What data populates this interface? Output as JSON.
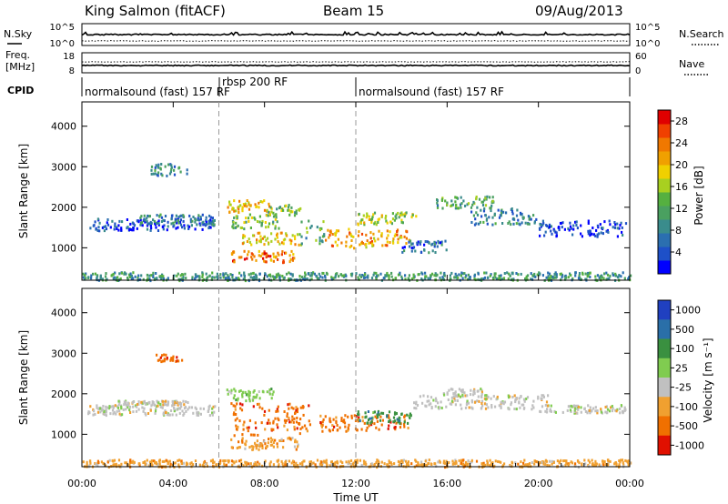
{
  "header": {
    "station": "King Salmon (fitACF)",
    "beam": "Beam 15",
    "date": "09/Aug/2013"
  },
  "noise_panel": {
    "left_label": "N.Sky",
    "left_ticks": [
      "10^5",
      "10^0"
    ],
    "right_label": "N.Search",
    "right_ticks": [
      "10^5",
      "10^0"
    ]
  },
  "freq_panel": {
    "left_label_1": "Freq.",
    "left_label_2": "[MHz]",
    "left_ticks": [
      "18",
      "8"
    ],
    "right_label": "Nave",
    "right_ticks": [
      "60",
      "0"
    ]
  },
  "cpid_panel": {
    "label": "CPID",
    "modes": [
      {
        "name": "normalsound (fast) 157 RF",
        "start_hour": 0
      },
      {
        "name": "rbsp 200 RF",
        "start_hour": 6
      },
      {
        "name": "normalsound (fast) 157 RF",
        "start_hour": 12
      }
    ]
  },
  "chart_data": [
    {
      "type": "heatmap",
      "name": "power",
      "ylabel": "Slant Range [km]",
      "yticks": [
        1000,
        2000,
        3000,
        4000
      ],
      "ylim": [
        200,
        4600
      ],
      "xlim": [
        0,
        24
      ],
      "colorbar": {
        "label": "Power [dB]",
        "tick_labels": [
          "4",
          "8",
          "12",
          "16",
          "20",
          "24",
          "28"
        ],
        "tick_values": [
          4,
          8,
          12,
          16,
          20,
          24,
          28
        ],
        "range": [
          0,
          30
        ],
        "colors": [
          "#0000ff",
          "#1e50c8",
          "#2b6fb0",
          "#3a8c8c",
          "#4aa060",
          "#55b040",
          "#a8d020",
          "#f0d000",
          "#f0a000",
          "#f07800",
          "#f04000",
          "#e00000"
        ]
      },
      "regions": [
        {
          "t": [
            0.2,
            5.8
          ],
          "r": [
            1450,
            1750
          ],
          "level": 4
        },
        {
          "t": [
            2.5,
            5.8
          ],
          "r": [
            1600,
            1850
          ],
          "level": 8
        },
        {
          "t": [
            3.0,
            4.6
          ],
          "r": [
            2800,
            3100
          ],
          "level": 8
        },
        {
          "t": [
            6.3,
            8.3
          ],
          "r": [
            1900,
            2200
          ],
          "level": 20
        },
        {
          "t": [
            6.5,
            8.6
          ],
          "r": [
            1500,
            1850
          ],
          "level": 14
        },
        {
          "t": [
            7.0,
            9.5
          ],
          "r": [
            1100,
            1400
          ],
          "level": 20
        },
        {
          "t": [
            6.5,
            9.3
          ],
          "r": [
            650,
            950
          ],
          "level": 24
        },
        {
          "t": [
            8.0,
            9.6
          ],
          "r": [
            1800,
            2100
          ],
          "level": 14
        },
        {
          "t": [
            9.5,
            10.6
          ],
          "r": [
            1100,
            1700
          ],
          "level": 12
        },
        {
          "t": [
            10.6,
            14.3
          ],
          "r": [
            1000,
            1500
          ],
          "level": 22
        },
        {
          "t": [
            12.0,
            14.6
          ],
          "r": [
            1600,
            1900
          ],
          "level": 16
        },
        {
          "t": [
            14.0,
            16.0
          ],
          "r": [
            900,
            1200
          ],
          "level": 6
        },
        {
          "t": [
            15.5,
            18.0
          ],
          "r": [
            2000,
            2300
          ],
          "level": 12
        },
        {
          "t": [
            17.0,
            20.0
          ],
          "r": [
            1600,
            2000
          ],
          "level": 8
        },
        {
          "t": [
            20.0,
            23.8
          ],
          "r": [
            1300,
            1700
          ],
          "level": 4
        },
        {
          "t": [
            0.0,
            24.0
          ],
          "r": [
            220,
            420
          ],
          "level": 10
        }
      ]
    },
    {
      "type": "heatmap",
      "name": "velocity",
      "ylabel": "Slant Range [km]",
      "yticks": [
        1000,
        2000,
        3000,
        4000
      ],
      "ylim": [
        200,
        4600
      ],
      "xlim": [
        0,
        24
      ],
      "colorbar": {
        "label": "Velocity [m s⁻¹]",
        "tick_labels": [
          "1000",
          "500",
          "100",
          "25",
          "-25",
          "-100",
          "-500",
          "-1000"
        ],
        "bands": [
          {
            "color": "#2040c0",
            "from": 1000,
            "to": 1000
          },
          {
            "color": "#2a6fa8",
            "from": 500,
            "to": 1000
          },
          {
            "color": "#3a9040",
            "from": 100,
            "to": 500
          },
          {
            "color": "#80cc50",
            "from": 25,
            "to": 100
          },
          {
            "color": "#c0c0c0",
            "from": -25,
            "to": 25
          },
          {
            "color": "#f0a030",
            "from": -100,
            "to": -25
          },
          {
            "color": "#f07000",
            "from": -500,
            "to": -100
          },
          {
            "color": "#e01000",
            "from": -1000,
            "to": -500
          }
        ]
      },
      "regions": [
        {
          "t": [
            0.2,
            5.8
          ],
          "r": [
            1500,
            1750
          ],
          "band": 4
        },
        {
          "t": [
            1.5,
            4.6
          ],
          "r": [
            1750,
            1850
          ],
          "band": 4
        },
        {
          "t": [
            3.2,
            4.4
          ],
          "r": [
            2800,
            3000
          ],
          "band": 6
        },
        {
          "t": [
            6.3,
            8.4
          ],
          "r": [
            1850,
            2150
          ],
          "band": 3
        },
        {
          "t": [
            6.5,
            10.0
          ],
          "r": [
            1000,
            1800
          ],
          "band": 6
        },
        {
          "t": [
            6.5,
            9.5
          ],
          "r": [
            650,
            950
          ],
          "band": 5
        },
        {
          "t": [
            8.8,
            9.8
          ],
          "r": [
            1200,
            1800
          ],
          "band": 6
        },
        {
          "t": [
            10.4,
            14.3
          ],
          "r": [
            1100,
            1500
          ],
          "band": 6
        },
        {
          "t": [
            12.0,
            14.5
          ],
          "r": [
            1300,
            1600
          ],
          "band": 2
        },
        {
          "t": [
            14.5,
            20.5
          ],
          "r": [
            1650,
            2000
          ],
          "band": 4
        },
        {
          "t": [
            15.8,
            17.5
          ],
          "r": [
            1950,
            2150
          ],
          "band": 4
        },
        {
          "t": [
            20.0,
            23.8
          ],
          "r": [
            1550,
            1750
          ],
          "band": 4
        },
        {
          "t": [
            0.0,
            24.0
          ],
          "r": [
            220,
            400
          ],
          "band": 5
        }
      ]
    }
  ],
  "time_axis": {
    "tick_labels": [
      "00:00",
      "04:00",
      "08:00",
      "12:00",
      "16:00",
      "20:00",
      "00:00"
    ],
    "tick_hours": [
      0,
      4,
      8,
      12,
      16,
      20,
      24
    ],
    "xlabel": "Time UT"
  },
  "vertical_markers_hours": [
    6,
    12
  ]
}
